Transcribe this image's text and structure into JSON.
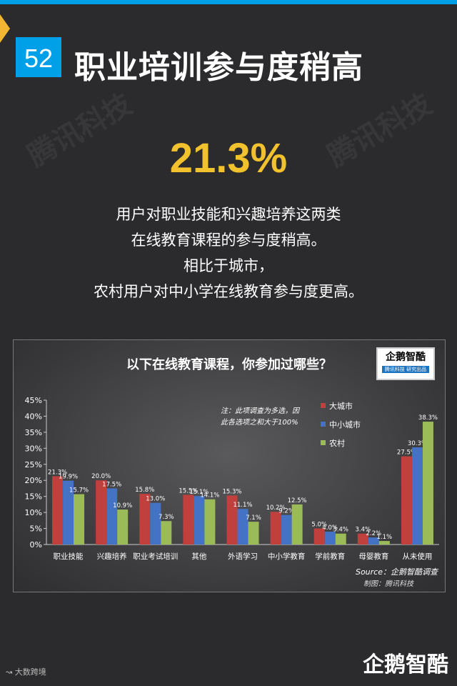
{
  "page_number": "52",
  "title": "职业培训参与度稍高",
  "watermark": "腾讯科技",
  "highlight": "21.3%",
  "description": [
    "用户对职业技能和兴趣培养这两类",
    "在线教育课程的参与度稍高。",
    "相比于城市，",
    "农村用户对中小学在线教育参与度更高。"
  ],
  "logo_text": "企鹅智酷",
  "logo_sub": "腾讯科技  研究出品",
  "note": [
    "注：此项调查为多选，因",
    "此各选项之和大于100%"
  ],
  "source": "Source：企鹅智酷调查",
  "maker": "制图：腾讯科技",
  "footer_left": "大数跨境",
  "footer_brand": "企鹅智酷",
  "colors": {
    "city": "#c0403e",
    "small_city": "#4472c4",
    "rural": "#9bbb59",
    "accent": "#f2c12e",
    "blue": "#00a0e9"
  },
  "chart_data": {
    "type": "bar",
    "title": "以下在线教育课程，你参加过哪些？",
    "categories": [
      "职业技能",
      "兴趣培养",
      "职业考试培训",
      "其他",
      "外语学习",
      "中小学教育",
      "学前教育",
      "母婴教育",
      "从未使用"
    ],
    "series": [
      {
        "name": "大城市",
        "values": [
          21.3,
          20.0,
          15.8,
          15.5,
          15.3,
          10.2,
          5.0,
          3.4,
          27.5
        ]
      },
      {
        "name": "中小城市",
        "values": [
          19.9,
          17.5,
          13.0,
          15.1,
          11.1,
          9.2,
          4.0,
          2.2,
          30.3
        ]
      },
      {
        "name": "农村",
        "values": [
          15.7,
          10.9,
          7.3,
          14.1,
          7.1,
          12.5,
          3.4,
          1.1,
          38.3
        ]
      }
    ],
    "ylim": [
      0,
      45
    ],
    "yticks": [
      "0%",
      "5%",
      "10%",
      "15%",
      "20%",
      "25%",
      "30%",
      "35%",
      "40%",
      "45%"
    ],
    "grid": false,
    "legend": "top-right"
  }
}
